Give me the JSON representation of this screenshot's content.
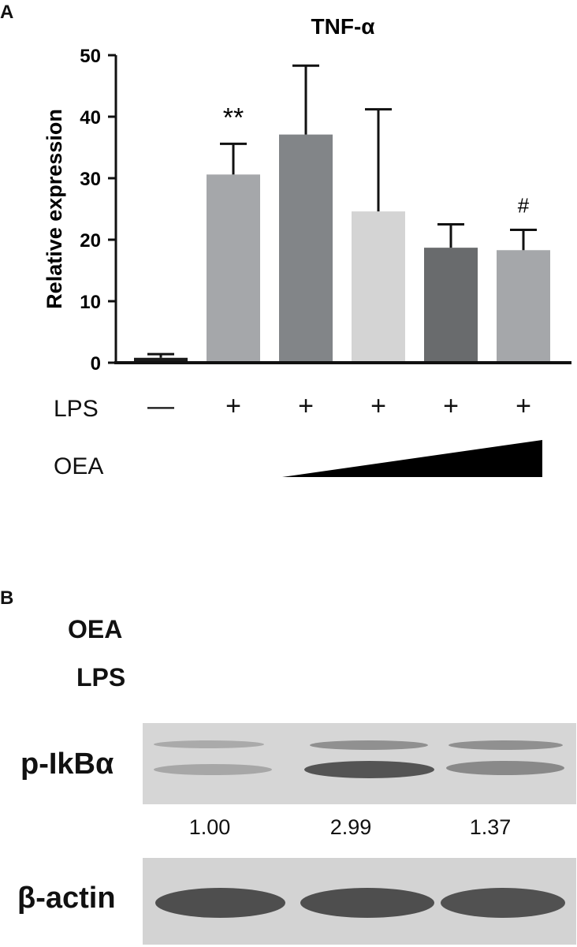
{
  "panel_a": {
    "letter": "A",
    "chart_data": {
      "type": "bar",
      "title": "TNF-α",
      "xlabel": "",
      "ylabel": "Relative expression",
      "ylim": [
        0,
        50
      ],
      "yticks": [
        "0",
        "10",
        "20",
        "30",
        "40",
        "50"
      ],
      "bars": [
        {
          "value": 0.8,
          "error": 0.6,
          "color": "#1a1a1a",
          "annotation": ""
        },
        {
          "value": 30.6,
          "error": 5.0,
          "color": "#a5a7aa",
          "annotation": "**"
        },
        {
          "value": 37.1,
          "error": 11.2,
          "color": "#828588",
          "annotation": ""
        },
        {
          "value": 24.6,
          "error": 16.6,
          "color": "#d4d4d4",
          "annotation": ""
        },
        {
          "value": 18.7,
          "error": 3.8,
          "color": "#696b6d",
          "annotation": ""
        },
        {
          "value": 18.3,
          "error": 3.3,
          "color": "#a5a7aa",
          "annotation": "#"
        }
      ],
      "lps_row": {
        "label": "LPS",
        "signs": [
          "—",
          "+",
          "+",
          "+",
          "+",
          "+"
        ]
      },
      "oea_row": {
        "label": "OEA"
      }
    }
  },
  "panel_b": {
    "letter": "B",
    "treatments": [
      "OEA",
      "LPS"
    ],
    "blots": [
      {
        "label": "p-IkBα",
        "quantification": [
          "1.00",
          "2.99",
          "1.37"
        ]
      },
      {
        "label": "β-actin",
        "quantification": []
      }
    ]
  }
}
